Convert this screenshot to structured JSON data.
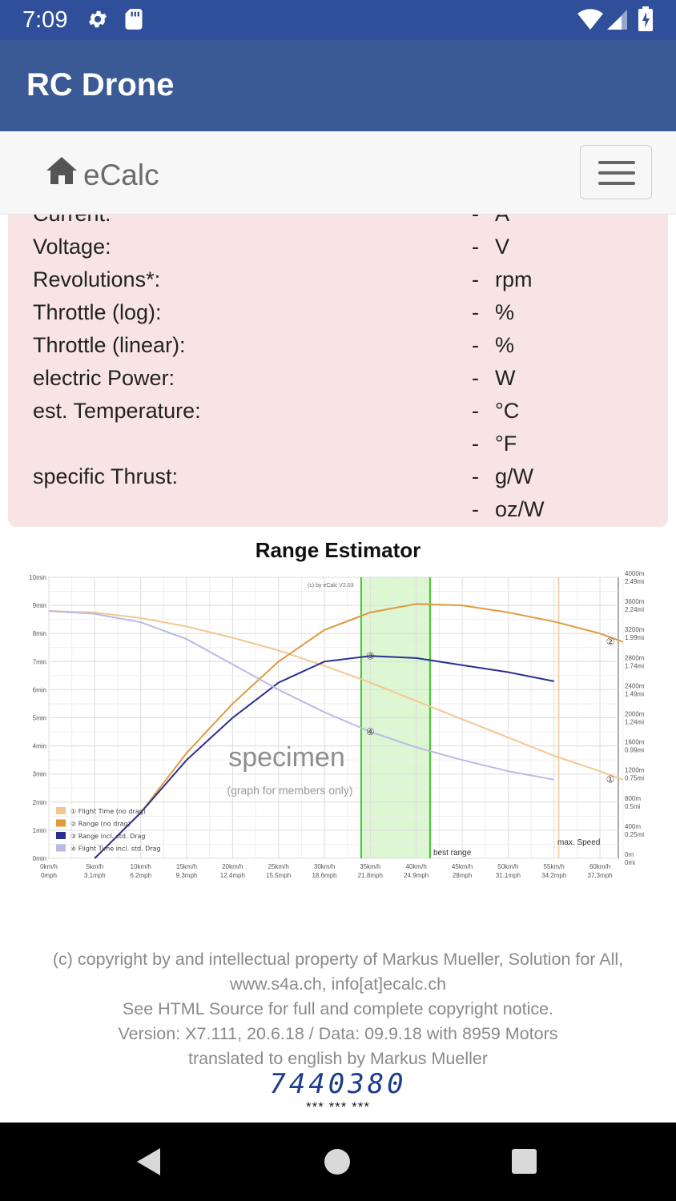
{
  "status_bar": {
    "time": "7:09"
  },
  "app_bar": {
    "title": "RC Drone"
  },
  "nav": {
    "brand": "eCalc"
  },
  "results": {
    "rows": [
      {
        "label": "Current:",
        "value": "-",
        "unit": "A"
      },
      {
        "label": "Voltage:",
        "value": "-",
        "unit": "V"
      },
      {
        "label": "Revolutions*:",
        "value": "-",
        "unit": "rpm"
      },
      {
        "label": "Throttle (log):",
        "value": "-",
        "unit": "%"
      },
      {
        "label": "Throttle (linear):",
        "value": "-",
        "unit": "%"
      },
      {
        "label": "electric Power:",
        "value": "-",
        "unit": "W"
      },
      {
        "label": "est. Temperature:",
        "value": "-",
        "unit": "°C"
      },
      {
        "label": "",
        "value": "-",
        "unit": "°F"
      },
      {
        "label": "specific Thrust:",
        "value": "-",
        "unit": "g/W"
      },
      {
        "label": "",
        "value": "-",
        "unit": "oz/W"
      }
    ]
  },
  "chart_title": "Range Estimator",
  "chart_data": {
    "type": "line",
    "title": "Range Estimator",
    "x": [
      0,
      5,
      10,
      15,
      20,
      25,
      30,
      35,
      40,
      45,
      50,
      55,
      60,
      63
    ],
    "x_ticks": [
      {
        "top": "0km/h",
        "bottom": "0mph"
      },
      {
        "top": "5km/h",
        "bottom": "3.1mph"
      },
      {
        "top": "10km/h",
        "bottom": "6.2mph"
      },
      {
        "top": "15km/h",
        "bottom": "9.3mph"
      },
      {
        "top": "20km/h",
        "bottom": "12.4mph"
      },
      {
        "top": "25km/h",
        "bottom": "15.5mph"
      },
      {
        "top": "30km/h",
        "bottom": "18.6mph"
      },
      {
        "top": "35km/h",
        "bottom": "21.8mph"
      },
      {
        "top": "40km/h",
        "bottom": "24.9mph"
      },
      {
        "top": "45km/h",
        "bottom": "28mph"
      },
      {
        "top": "50km/h",
        "bottom": "31.1mph"
      },
      {
        "top": "55km/h",
        "bottom": "34.2mph"
      },
      {
        "top": "60km/h",
        "bottom": "37.3mph"
      }
    ],
    "y_left_ticks": [
      "0min",
      "1min",
      "2min",
      "3min",
      "4min",
      "5min",
      "6min",
      "7min",
      "8min",
      "9min",
      "10min"
    ],
    "y_right_ticks": [
      {
        "top": "0m",
        "bottom": "0mi"
      },
      {
        "top": "400m",
        "bottom": "0.25mi"
      },
      {
        "top": "800m",
        "bottom": "0.5mi"
      },
      {
        "top": "1200m",
        "bottom": "0.75mi"
      },
      {
        "top": "1600m",
        "bottom": "0.99mi"
      },
      {
        "top": "2000m",
        "bottom": "1.24mi"
      },
      {
        "top": "2400m",
        "bottom": "1.49mi"
      },
      {
        "top": "2800m",
        "bottom": "1.74mi"
      },
      {
        "top": "3200m",
        "bottom": "1.99mi"
      },
      {
        "top": "3600m",
        "bottom": "2.24mi"
      },
      {
        "top": "4000m",
        "bottom": "2.49mi"
      }
    ],
    "xlim": [
      0,
      62
    ],
    "ylim_left": [
      0,
      10
    ],
    "ylim_right": [
      0,
      4000
    ],
    "grid": true,
    "legend_position": "bottom-left",
    "series": [
      {
        "name": "Flight Time (no drag)",
        "marker": "①",
        "axis": "left",
        "color": "#f4c78f",
        "x": [
          0,
          5,
          10,
          15,
          20,
          25,
          30,
          35,
          40,
          45,
          50,
          55,
          60,
          62.5
        ],
        "y": [
          8.8,
          8.75,
          8.55,
          8.25,
          7.85,
          7.4,
          6.85,
          6.25,
          5.6,
          4.95,
          4.3,
          3.65,
          3.1,
          2.8
        ]
      },
      {
        "name": "Range (no drag)",
        "marker": "②",
        "axis": "right",
        "color": "#e09a3e",
        "x": [
          5,
          10,
          15,
          20,
          25,
          30,
          35,
          40,
          45,
          50,
          55,
          60,
          62.5
        ],
        "y": [
          0,
          650,
          1500,
          2200,
          2800,
          3250,
          3500,
          3620,
          3600,
          3500,
          3370,
          3200,
          3080
        ]
      },
      {
        "name": "Range incl. std. Drag",
        "marker": "③",
        "axis": "right",
        "color": "#2b2f8f",
        "x": [
          5,
          10,
          15,
          20,
          25,
          30,
          35,
          40,
          45,
          50,
          55
        ],
        "y": [
          0,
          650,
          1400,
          2000,
          2500,
          2800,
          2880,
          2850,
          2750,
          2650,
          2520
        ]
      },
      {
        "name": "Flight Time incl. std. Drag",
        "marker": "④",
        "axis": "left",
        "color": "#b9b9e6",
        "x": [
          0,
          5,
          10,
          15,
          20,
          25,
          30,
          35,
          40,
          45,
          50,
          55
        ],
        "y": [
          8.8,
          8.7,
          8.4,
          7.8,
          6.9,
          6.0,
          5.2,
          4.5,
          3.95,
          3.5,
          3.1,
          2.8
        ]
      }
    ],
    "annotations": {
      "watermark": "specimen",
      "watermark_sub": "(graph for members only)",
      "credit": "(c) by eCalc  V2.03",
      "best_range_label": "best range",
      "best_range_kmh": [
        34,
        41.5
      ],
      "max_speed_label": "max. Speed",
      "max_speed_kmh": 55.5
    }
  },
  "footer": {
    "line1": "(c) copyright by and intellectual property of Markus Mueller, Solution for All,",
    "line2": "www.s4a.ch, info[at]ecalc.ch",
    "line3": "See HTML Source for full and complete copyright notice.",
    "line4": "Version: X7.111, 20.6.18 / Data: 09.9.18 with 8959 Motors",
    "line5": "translated to english by Markus Mueller"
  },
  "counter": "7440380",
  "stars": "*** *** ***",
  "icons": {
    "status": [
      "gear-icon",
      "sd-card-icon",
      "wifi-icon",
      "signal-icon",
      "battery-charging-icon"
    ],
    "nav": [
      "home-icon",
      "hamburger-menu-icon"
    ],
    "system": [
      "back-icon",
      "home-circle-icon",
      "recents-icon"
    ]
  }
}
